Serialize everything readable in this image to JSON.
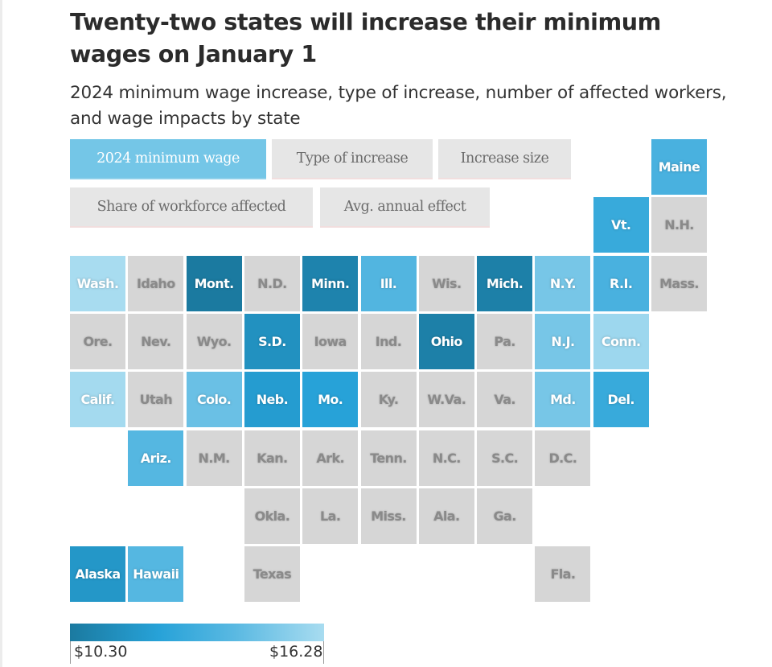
{
  "header": {
    "title": "Twenty-two states will increase their minimum wages on January 1",
    "subtitle": "2024 minimum wage increase, type of increase, number of affected workers, and wage impacts by state"
  },
  "tabs": [
    {
      "label": "2024 minimum wage",
      "active": true
    },
    {
      "label": "Type of increase",
      "active": false
    },
    {
      "label": "Increase size",
      "active": false
    },
    {
      "label": "Share of workforce affected",
      "active": false
    },
    {
      "label": "Avg. annual effect",
      "active": false
    }
  ],
  "colors": {
    "no_increase": "#d6d6d6",
    "scale_low": "#1b7aa0",
    "scale_high": "#a8dcf0"
  },
  "chart_data": {
    "type": "heatmap",
    "title": "Twenty-two states will increase their minimum wages on January 1",
    "subtitle": "2024 minimum wage increase, type of increase, number of affected workers, and wage impacts by state",
    "metric": "2024 minimum wage",
    "legend": {
      "min_label": "$10.30",
      "max_label": "$16.28",
      "min": 10.3,
      "max": 16.28,
      "placement": "bottom-left"
    },
    "tiles": [
      {
        "state": "Maine",
        "row": 0,
        "col": 10,
        "increase": true,
        "shade": 0.55
      },
      {
        "state": "Vt.",
        "row": 1,
        "col": 9,
        "increase": true,
        "shade": 0.45
      },
      {
        "state": "N.H.",
        "row": 1,
        "col": 10,
        "increase": false
      },
      {
        "state": "Wash.",
        "row": 2,
        "col": 0,
        "increase": true,
        "shade": 1.0
      },
      {
        "state": "Idaho",
        "row": 2,
        "col": 1,
        "increase": false
      },
      {
        "state": "Mont.",
        "row": 2,
        "col": 2,
        "increase": true,
        "shade": 0.0
      },
      {
        "state": "N.D.",
        "row": 2,
        "col": 3,
        "increase": false
      },
      {
        "state": "Minn.",
        "row": 2,
        "col": 4,
        "increase": true,
        "shade": 0.08
      },
      {
        "state": "Ill.",
        "row": 2,
        "col": 5,
        "increase": true,
        "shade": 0.6
      },
      {
        "state": "Wis.",
        "row": 2,
        "col": 6,
        "increase": false
      },
      {
        "state": "Mich.",
        "row": 2,
        "col": 7,
        "increase": true,
        "shade": 0.05
      },
      {
        "state": "N.Y.",
        "row": 2,
        "col": 8,
        "increase": true,
        "shade": 0.78
      },
      {
        "state": "R.I.",
        "row": 2,
        "col": 9,
        "increase": true,
        "shade": 0.55
      },
      {
        "state": "Mass.",
        "row": 2,
        "col": 10,
        "increase": false
      },
      {
        "state": "Ore.",
        "row": 3,
        "col": 0,
        "increase": false
      },
      {
        "state": "Nev.",
        "row": 3,
        "col": 1,
        "increase": false
      },
      {
        "state": "Wyo.",
        "row": 3,
        "col": 2,
        "increase": false
      },
      {
        "state": "S.D.",
        "row": 3,
        "col": 3,
        "increase": true,
        "shade": 0.2
      },
      {
        "state": "Iowa",
        "row": 3,
        "col": 4,
        "increase": false
      },
      {
        "state": "Ind.",
        "row": 3,
        "col": 5,
        "increase": false
      },
      {
        "state": "Ohio",
        "row": 3,
        "col": 6,
        "increase": true,
        "shade": 0.05
      },
      {
        "state": "Pa.",
        "row": 3,
        "col": 7,
        "increase": false
      },
      {
        "state": "N.J.",
        "row": 3,
        "col": 8,
        "increase": true,
        "shade": 0.78
      },
      {
        "state": "Conn.",
        "row": 3,
        "col": 9,
        "increase": true,
        "shade": 0.95
      },
      {
        "state": "Calif.",
        "row": 4,
        "col": 0,
        "increase": true,
        "shade": 0.98
      },
      {
        "state": "Utah",
        "row": 4,
        "col": 1,
        "increase": false
      },
      {
        "state": "Colo.",
        "row": 4,
        "col": 2,
        "increase": true,
        "shade": 0.72
      },
      {
        "state": "Neb.",
        "row": 4,
        "col": 3,
        "increase": true,
        "shade": 0.3
      },
      {
        "state": "Mo.",
        "row": 4,
        "col": 4,
        "increase": true,
        "shade": 0.35
      },
      {
        "state": "Ky.",
        "row": 4,
        "col": 5,
        "increase": false
      },
      {
        "state": "W.Va.",
        "row": 4,
        "col": 6,
        "increase": false
      },
      {
        "state": "Va.",
        "row": 4,
        "col": 7,
        "increase": false
      },
      {
        "state": "Md.",
        "row": 4,
        "col": 8,
        "increase": true,
        "shade": 0.78
      },
      {
        "state": "Del.",
        "row": 4,
        "col": 9,
        "increase": true,
        "shade": 0.45
      },
      {
        "state": "Ariz.",
        "row": 5,
        "col": 1,
        "increase": true,
        "shade": 0.62
      },
      {
        "state": "N.M.",
        "row": 5,
        "col": 2,
        "increase": false
      },
      {
        "state": "Kan.",
        "row": 5,
        "col": 3,
        "increase": false
      },
      {
        "state": "Ark.",
        "row": 5,
        "col": 4,
        "increase": false
      },
      {
        "state": "Tenn.",
        "row": 5,
        "col": 5,
        "increase": false
      },
      {
        "state": "N.C.",
        "row": 5,
        "col": 6,
        "increase": false
      },
      {
        "state": "S.C.",
        "row": 5,
        "col": 7,
        "increase": false
      },
      {
        "state": "D.C.",
        "row": 5,
        "col": 8,
        "increase": false
      },
      {
        "state": "Okla.",
        "row": 6,
        "col": 3,
        "increase": false
      },
      {
        "state": "La.",
        "row": 6,
        "col": 4,
        "increase": false
      },
      {
        "state": "Miss.",
        "row": 6,
        "col": 5,
        "increase": false
      },
      {
        "state": "Ala.",
        "row": 6,
        "col": 6,
        "increase": false
      },
      {
        "state": "Ga.",
        "row": 6,
        "col": 7,
        "increase": false
      },
      {
        "state": "Alaska",
        "row": 7,
        "col": 0,
        "increase": true,
        "shade": 0.25
      },
      {
        "state": "Hawaii",
        "row": 7,
        "col": 1,
        "increase": true,
        "shade": 0.62
      },
      {
        "state": "Texas",
        "row": 7,
        "col": 3,
        "increase": false
      },
      {
        "state": "Fla.",
        "row": 7,
        "col": 8,
        "increase": false
      }
    ]
  }
}
